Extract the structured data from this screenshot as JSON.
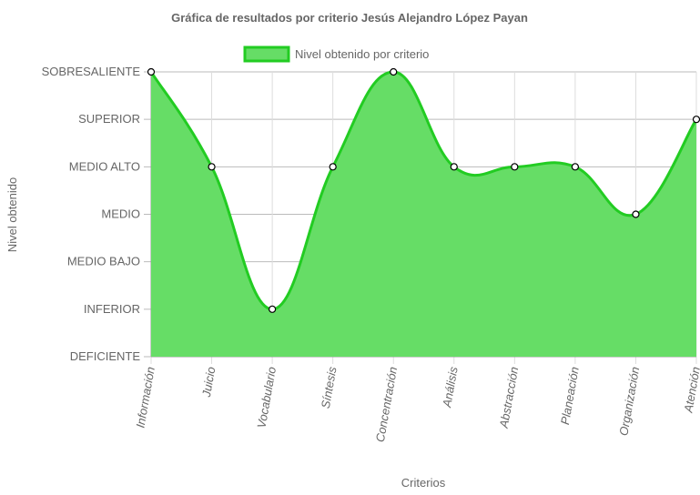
{
  "chart_data": {
    "type": "area",
    "title": "Gráfica de resultados por criterio Jesús Alejandro López Payan",
    "xlabel": "Criterios",
    "ylabel": "Nivel obtenido",
    "y_levels": [
      "DEFICIENTE",
      "INFERIOR",
      "MEDIO BAJO",
      "MEDIO",
      "MEDIO ALTO",
      "SUPERIOR",
      "SOBRESALIENTE"
    ],
    "ylim": [
      0,
      6
    ],
    "categories": [
      "Información",
      "Juicio",
      "Vocabulario",
      "Síntesis",
      "Concentración",
      "Análisis",
      "Abstracción",
      "Planeación",
      "Organización",
      "Atención"
    ],
    "series": [
      {
        "name": "Nivel obtenido por criterio",
        "values": [
          6,
          4,
          1,
          4,
          6,
          4,
          4,
          4,
          3,
          5
        ]
      }
    ],
    "legend_position": "top",
    "grid": true,
    "colors": {
      "fill": "#66dd66",
      "line": "#22cc22",
      "grid": "#bbbbbb",
      "text": "#666666",
      "point_fill": "#ffffff",
      "point_stroke": "#000000"
    }
  }
}
